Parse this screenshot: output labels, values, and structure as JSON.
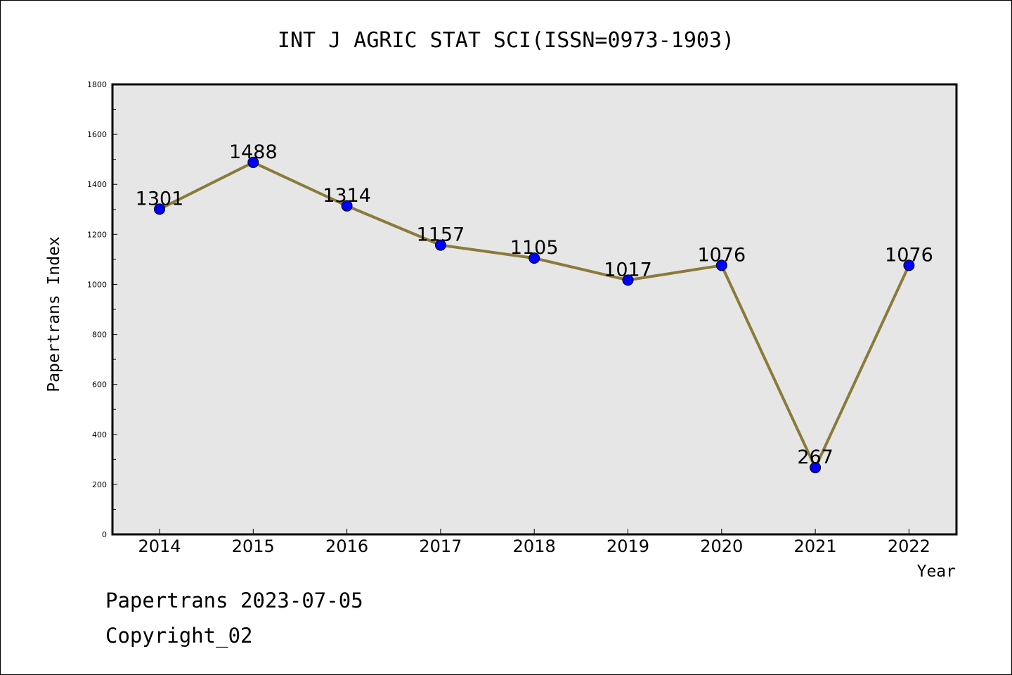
{
  "chart_data": {
    "type": "line",
    "title": "INT J AGRIC STAT SCI(ISSN=0973-1903)",
    "xlabel": "Year",
    "ylabel": "Papertrans Index",
    "categories": [
      "2014",
      "2015",
      "2016",
      "2017",
      "2018",
      "2019",
      "2020",
      "2021",
      "2022"
    ],
    "values": [
      1301,
      1488,
      1314,
      1157,
      1105,
      1017,
      1076,
      267,
      1076
    ],
    "ylim": [
      0,
      1800
    ],
    "yticks": [
      0,
      200,
      400,
      600,
      800,
      1000,
      1200,
      1400,
      1600,
      1800
    ],
    "grid": false,
    "colors": {
      "line": "#8b7a3a",
      "marker": "#0000ff",
      "plot_background": "#e6e6e6"
    }
  },
  "footer": {
    "line1": "Papertrans 2023-07-05",
    "line2": "Copyright_02"
  }
}
